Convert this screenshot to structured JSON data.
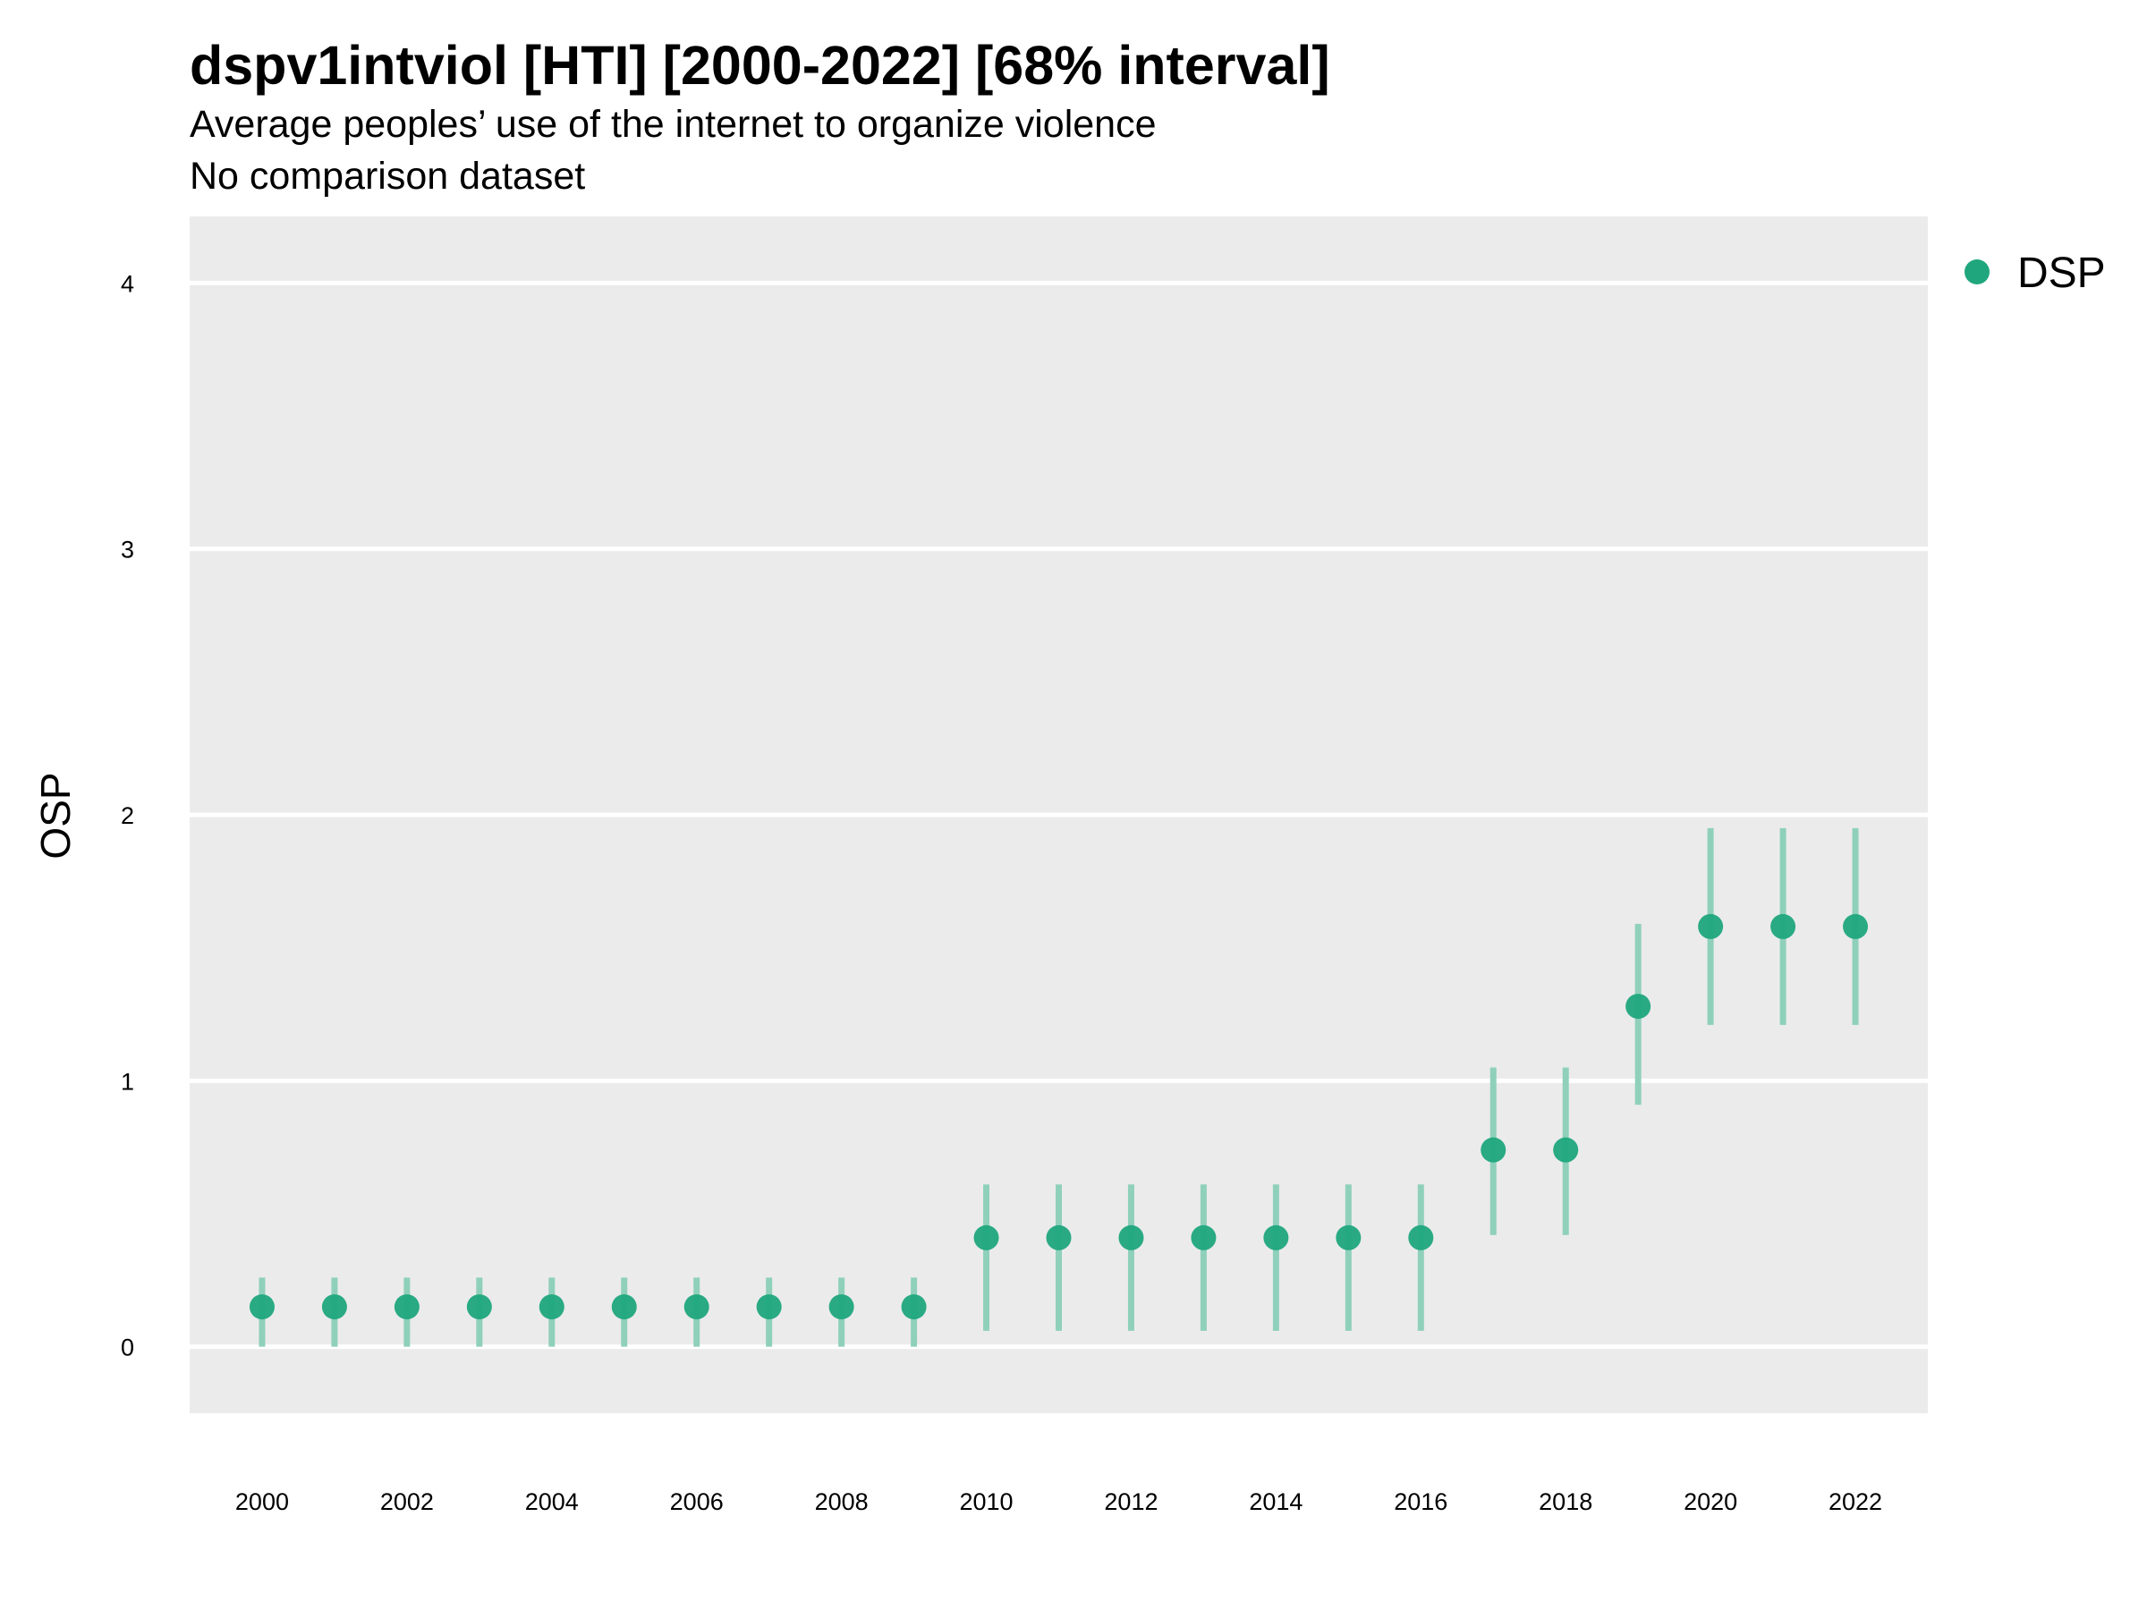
{
  "title": "dspv1intviol [HTI] [2000-2022] [68% interval]",
  "subtitle": "Average peoples’ use of the internet to organize violence",
  "subtitle2": "No comparison dataset",
  "colors": {
    "panel_background": "#ebebeb",
    "gridline": "#ffffff",
    "point": "#1fa67d",
    "interval": "#8fd0bb"
  },
  "chart_data": {
    "type": "scatter",
    "title": "dspv1intviol [HTI] [2000-2022] [68% interval]",
    "xlabel": "",
    "ylabel": "OSP",
    "xlim": [
      1999.0,
      2023.0
    ],
    "ylim": [
      -0.25,
      4.25
    ],
    "x_ticks": [
      "2000",
      "2002",
      "2004",
      "2006",
      "2008",
      "2010",
      "2012",
      "2014",
      "2016",
      "2018",
      "2020",
      "2022"
    ],
    "y_ticks": [
      "0",
      "1",
      "2",
      "3",
      "4"
    ],
    "grid": true,
    "legend": {
      "position": "right",
      "entries": [
        "DSP"
      ]
    },
    "series": [
      {
        "name": "DSP",
        "x": [
          2000,
          2001,
          2002,
          2003,
          2004,
          2005,
          2006,
          2007,
          2008,
          2009,
          2010,
          2011,
          2012,
          2013,
          2014,
          2015,
          2016,
          2017,
          2018,
          2019,
          2020,
          2021,
          2022
        ],
        "y": [
          0.15,
          0.15,
          0.15,
          0.15,
          0.15,
          0.15,
          0.15,
          0.15,
          0.15,
          0.15,
          0.41,
          0.41,
          0.41,
          0.41,
          0.41,
          0.41,
          0.41,
          0.74,
          0.74,
          1.28,
          1.58,
          1.58,
          1.58
        ],
        "lower": [
          0.0,
          0.0,
          0.0,
          0.0,
          0.0,
          0.0,
          0.0,
          0.0,
          0.0,
          0.0,
          0.06,
          0.06,
          0.06,
          0.06,
          0.06,
          0.06,
          0.06,
          0.42,
          0.42,
          0.91,
          1.21,
          1.21,
          1.21
        ],
        "upper": [
          0.26,
          0.26,
          0.26,
          0.26,
          0.26,
          0.26,
          0.26,
          0.26,
          0.26,
          0.26,
          0.61,
          0.61,
          0.61,
          0.61,
          0.61,
          0.61,
          0.61,
          1.05,
          1.05,
          1.59,
          1.95,
          1.95,
          1.95
        ]
      }
    ]
  }
}
